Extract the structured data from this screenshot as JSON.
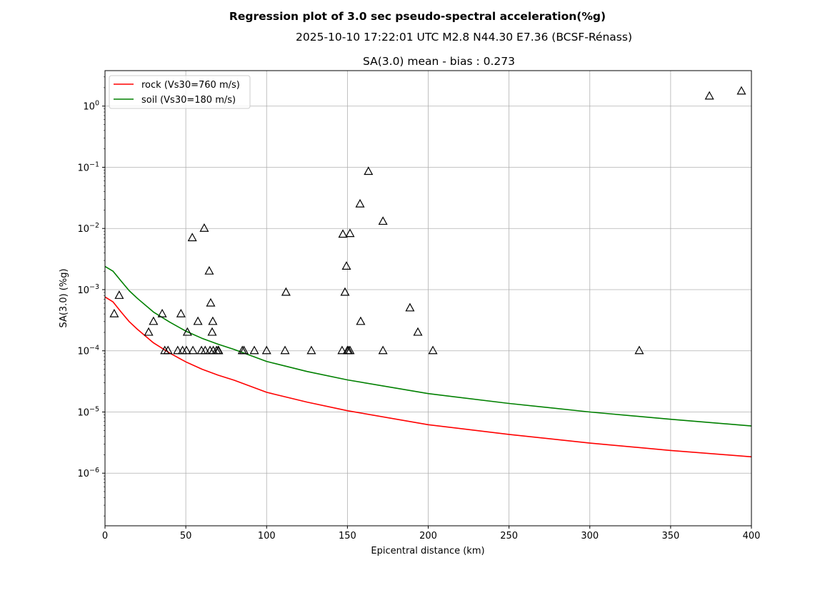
{
  "chart_data": {
    "type": "scatter",
    "title": "Regression plot of 3.0 sec pseudo-spectral acceleration(%g)",
    "subtitle": "2025-10-10 17:22:01 UTC M2.8 N44.30 E7.36 (BCSF-Rénass)",
    "axes_title": "SA(3.0) mean - bias : 0.273",
    "xlabel": "Epicentral distance (km)",
    "ylabel": "SA(3.0) (%g)",
    "xlim": [
      0,
      400
    ],
    "ylim": [
      1.38e-07,
      3.8
    ],
    "yscale": "log",
    "grid": true,
    "x_ticks": [
      0,
      50,
      100,
      150,
      200,
      250,
      300,
      350,
      400
    ],
    "y_ticks": [
      {
        "value": 1e-06,
        "base": "10",
        "exp": "−6"
      },
      {
        "value": 1e-05,
        "base": "10",
        "exp": "−5"
      },
      {
        "value": 0.0001,
        "base": "10",
        "exp": "−4"
      },
      {
        "value": 0.001,
        "base": "10",
        "exp": "−3"
      },
      {
        "value": 0.01,
        "base": "10",
        "exp": "−2"
      },
      {
        "value": 0.1,
        "base": "10",
        "exp": "−1"
      },
      {
        "value": 1,
        "base": "10",
        "exp": "0"
      }
    ],
    "legend_position": "top-left",
    "series": [
      {
        "name": "rock (Vs30=760 m/s)",
        "kind": "line",
        "color": "#ff0000",
        "x": [
          0,
          5,
          10,
          15,
          20,
          30,
          40,
          50,
          60,
          70,
          80,
          100,
          125,
          150,
          200,
          250,
          300,
          350,
          400
        ],
        "y": [
          0.00076,
          0.00063,
          0.00043,
          0.0003,
          0.000225,
          0.000135,
          9.2e-05,
          6.6e-05,
          5e-05,
          4e-05,
          3.3e-05,
          2.1e-05,
          1.45e-05,
          1.05e-05,
          6.2e-06,
          4.3e-06,
          3.1e-06,
          2.35e-06,
          1.85e-06
        ]
      },
      {
        "name": "soil (Vs30=180 m/s)",
        "kind": "line",
        "color": "#008000",
        "x": [
          0,
          5,
          10,
          15,
          20,
          30,
          40,
          50,
          60,
          70,
          80,
          100,
          125,
          150,
          200,
          250,
          300,
          350,
          400
        ],
        "y": [
          0.0024,
          0.002,
          0.00138,
          0.00096,
          0.00072,
          0.00043,
          0.000295,
          0.00021,
          0.00016,
          0.000128,
          0.000105,
          6.7e-05,
          4.6e-05,
          3.35e-05,
          2e-05,
          1.38e-05,
          1e-05,
          7.6e-06,
          5.9e-06
        ]
      },
      {
        "name": "observations",
        "kind": "marker",
        "marker": "triangle-open",
        "color": "#000000",
        "x": [
          5.7,
          8.8,
          27,
          30,
          35.4,
          37,
          39,
          45,
          47,
          48,
          50.4,
          51,
          54,
          54.4,
          57.5,
          59.7,
          61.4,
          62,
          64.5,
          65,
          65.4,
          66.3,
          66.7,
          67,
          69,
          70,
          70.3,
          85,
          86,
          92.4,
          100,
          111.4,
          112,
          127.7,
          146.7,
          147.2,
          148.5,
          149.4,
          150,
          150.7,
          151.6,
          151.6,
          157.8,
          158.2,
          163,
          172,
          172,
          188.7,
          193.6,
          202.9,
          330.6,
          374,
          393.8
        ],
        "y": [
          0.0004,
          0.0008,
          0.0002,
          0.0003,
          0.0004,
          0.0001,
          0.0001,
          0.0001,
          0.0004,
          0.0001,
          0.0001,
          0.0002,
          0.007,
          0.0001,
          0.0003,
          0.0001,
          0.01,
          0.0001,
          0.002,
          0.0001,
          0.0006,
          0.0002,
          0.0003,
          0.0001,
          0.0001,
          0.0001,
          0.0001,
          0.0001,
          0.0001,
          0.0001,
          0.0001,
          0.0001,
          0.0009,
          0.0001,
          0.0001,
          0.008,
          0.0009,
          0.0024,
          0.0001,
          0.0001,
          0.0082,
          0.0001,
          0.025,
          0.0003,
          0.085,
          0.013,
          0.0001,
          0.0005,
          0.0002,
          0.0001,
          0.0001,
          1.45,
          1.75
        ]
      }
    ]
  }
}
